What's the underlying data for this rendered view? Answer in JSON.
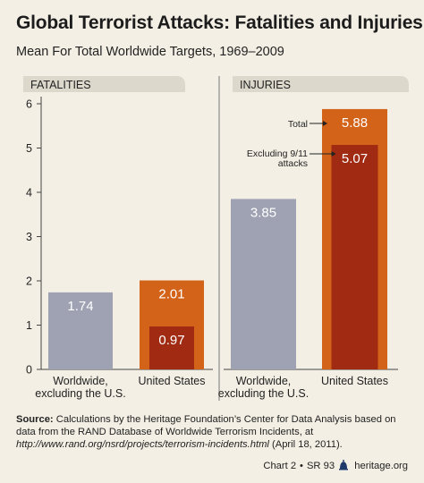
{
  "chart_data": {
    "type": "bar",
    "title": "Global Terrorist Attacks: Fatalities and Injuries",
    "subtitle": "Mean For Total Worldwide Targets, 1969–2009",
    "ylim": [
      0,
      6
    ],
    "yticks": [
      0,
      1,
      2,
      3,
      4,
      5,
      6
    ],
    "ytick_labels": [
      "0",
      "1",
      "2",
      "3",
      "4",
      "5",
      "6"
    ],
    "grid": false,
    "panels": [
      {
        "label": "FATALITIES",
        "categories": [
          "Worldwide, excluding the U.S.",
          "United States"
        ],
        "category_lines": [
          [
            "Worldwide,",
            "excluding the U.S."
          ],
          [
            "United States"
          ]
        ],
        "series": [
          {
            "name": "Total",
            "values": [
              1.74,
              2.01
            ]
          },
          {
            "name": "Excluding 9/11 attacks",
            "values": [
              null,
              0.97
            ]
          }
        ],
        "data_labels": {
          "total": [
            "1.74",
            "2.01"
          ],
          "excluding": [
            "",
            "0.97"
          ]
        }
      },
      {
        "label": "INJURIES",
        "categories": [
          "Worldwide, excluding the U.S.",
          "United States"
        ],
        "category_lines": [
          [
            "Worldwide,",
            "excluding the U.S."
          ],
          [
            "United States"
          ]
        ],
        "series": [
          {
            "name": "Total",
            "values": [
              3.85,
              5.88
            ]
          },
          {
            "name": "Excluding 9/11 attacks",
            "values": [
              null,
              5.07
            ]
          }
        ],
        "data_labels": {
          "total": [
            "3.85",
            "5.88"
          ],
          "excluding": [
            "",
            "5.07"
          ]
        }
      }
    ],
    "annotations": {
      "total": "Total",
      "excluding_lines": [
        "Excluding 9/11",
        "attacks"
      ]
    },
    "colors": {
      "worldwide": "#9ea2b2",
      "us_total": "#d4631a",
      "us_excluding": "#a02a12",
      "panel_header": "#dcd8cc"
    }
  },
  "source": {
    "label": "Source:",
    "text1": "Calculations by the Heritage Foundation’s Center for Data Analysis based on data from the RAND Database of Worldwide Terrorism Incidents, at ",
    "url": "http://www.rand.org/nsrd/projects/terrorism-incidents.html",
    "text2": " (April 18, 2011)."
  },
  "footer": {
    "chart": "Chart 2",
    "separator": "•",
    "series": "SR 93",
    "site": "heritage.org"
  }
}
